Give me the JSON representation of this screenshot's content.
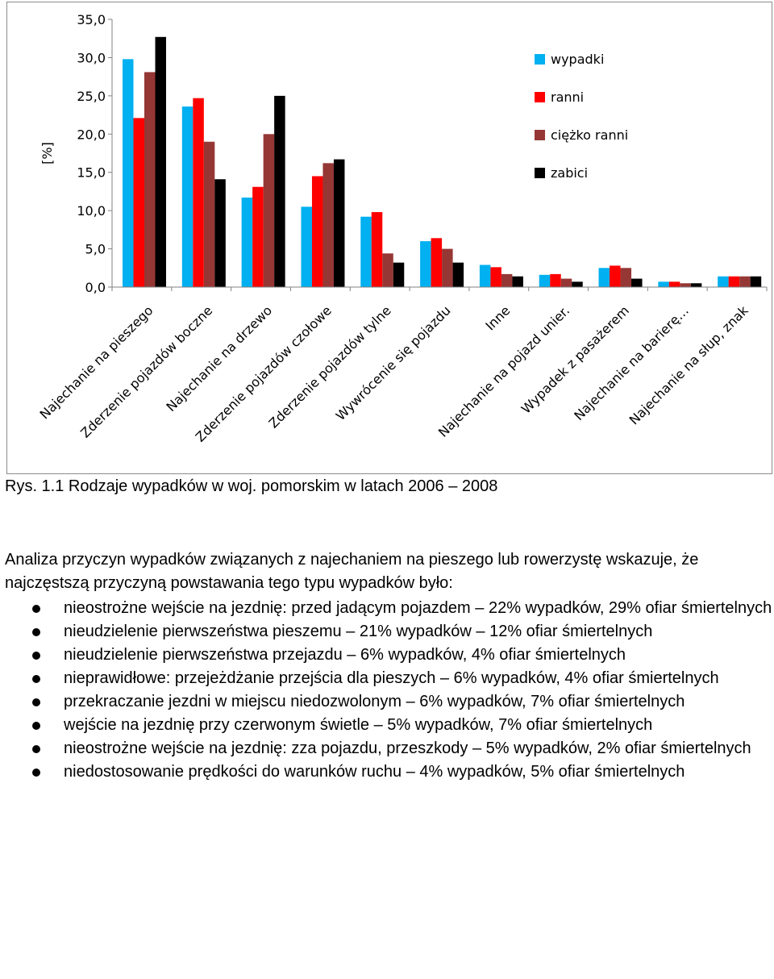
{
  "chart_data": {
    "type": "bar",
    "ylabel": "[%]",
    "ylim": [
      0,
      35
    ],
    "yticks": [
      "35,0",
      "30,0",
      "25,0",
      "20,0",
      "15,0",
      "10,0",
      "5,0",
      "0,0"
    ],
    "categories": [
      "Najechanie na pieszego",
      "Zderzenie pojazdów boczne",
      "Najechanie na drzewo",
      "Zderzenie pojazdów czołowe",
      "Zderzenie pojazdów tylne",
      "Wywrócenie się pojazdu",
      "Inne",
      "Najechanie na pojazd unier.",
      "Wypadek z pasażerem",
      "Najechanie na barierę…",
      "Najechanie na słup, znak"
    ],
    "series": [
      {
        "name": "wypadki",
        "color": "#00B0F0",
        "values": [
          29.8,
          23.6,
          11.7,
          10.5,
          9.2,
          6.0,
          2.9,
          1.6,
          2.5,
          0.7,
          1.4
        ]
      },
      {
        "name": "ranni",
        "color": "#FF0000",
        "values": [
          22.1,
          24.7,
          13.1,
          14.5,
          9.8,
          6.4,
          2.6,
          1.7,
          2.8,
          0.7,
          1.4
        ]
      },
      {
        "name": "ciężko ranni",
        "color": "#953735",
        "values": [
          28.1,
          19.0,
          20.0,
          16.2,
          4.4,
          5.0,
          1.7,
          1.1,
          2.5,
          0.5,
          1.4
        ]
      },
      {
        "name": "zabici",
        "color": "#000000",
        "values": [
          32.7,
          14.1,
          25.0,
          16.7,
          3.2,
          3.2,
          1.4,
          0.7,
          1.1,
          0.5,
          1.4
        ]
      }
    ],
    "grid": false,
    "legend": "top-right"
  },
  "caption": "Rys. 1.1 Rodzaje wypadków w woj. pomorskim w latach 2006 – 2008",
  "paragraph": "Analiza przyczyn wypadków związanych z najechaniem na pieszego lub rowerzystę wskazuje, że najczęstszą przyczyną powstawania tego typu wypadków było:",
  "bullets": [
    "nieostrożne wejście na jezdnię: przed jadącym pojazdem – 22% wypadków, 29% ofiar śmiertelnych",
    "nieudzielenie pierwszeństwa pieszemu – 21% wypadków – 12% ofiar śmiertelnych",
    "nieudzielenie pierwszeństwa przejazdu – 6% wypadków, 4% ofiar śmiertelnych",
    "nieprawidłowe: przejeżdżanie przejścia dla pieszych – 6% wypadków, 4% ofiar śmiertelnych",
    "przekraczanie jezdni w miejscu niedozwolonym – 6% wypadków, 7% ofiar śmiertelnych",
    "wejście na jezdnię przy czerwonym świetle – 5% wypadków, 7% ofiar śmiertelnych",
    "nieostrożne wejście na jezdnię: zza pojazdu, przeszkody – 5% wypadków, 2% ofiar śmiertelnych",
    "niedostosowanie prędkości do warunków ruchu – 4% wypadków, 5% ofiar śmiertelnych"
  ]
}
